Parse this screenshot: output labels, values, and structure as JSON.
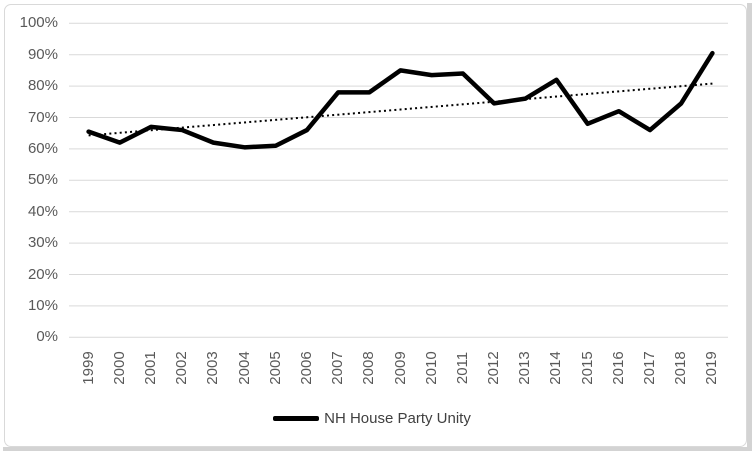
{
  "chart_data": {
    "type": "line",
    "legend": "NH House Party Unity",
    "categories": [
      "1999",
      "2000",
      "2001",
      "2002",
      "2003",
      "2004",
      "2005",
      "2006",
      "2007",
      "2008",
      "2009",
      "2010",
      "2011",
      "2012",
      "2013",
      "2014",
      "2015",
      "2016",
      "2017",
      "2018",
      "2019"
    ],
    "series": [
      {
        "name": "NH House Party Unity",
        "values": [
          65.5,
          62,
          67,
          66,
          62,
          60.5,
          61,
          66,
          78,
          78,
          85,
          83.5,
          84,
          74.5,
          76,
          82,
          68,
          72,
          66,
          74.5,
          90.5
        ]
      }
    ],
    "trendline": {
      "style": "dotted",
      "start_value": 64.3,
      "end_value": 80.8
    },
    "y_axis": {
      "min": 0,
      "max": 100,
      "step": 10,
      "ticks": [
        {
          "label": "100%",
          "value": 100
        },
        {
          "label": "90%",
          "value": 90
        },
        {
          "label": "80%",
          "value": 80
        },
        {
          "label": "70%",
          "value": 70
        },
        {
          "label": "60%",
          "value": 60
        },
        {
          "label": "50%",
          "value": 50
        },
        {
          "label": "40%",
          "value": 40
        },
        {
          "label": "30%",
          "value": 30
        },
        {
          "label": "20%",
          "value": 20
        },
        {
          "label": "10%",
          "value": 10
        },
        {
          "label": "0%",
          "value": 0
        }
      ]
    },
    "layout": {
      "grid": "horizontal",
      "legend_position": "bottom",
      "x_label_rotation": -90
    },
    "colors": {
      "series": "#000000",
      "trendline": "#000000",
      "gridline": "#d9d9d9",
      "axis_label": "#595959",
      "legend_text": "#404040",
      "background": "#ffffff",
      "frame_border": "#d9d9d9",
      "edge_shadow": "#d3d3d3"
    }
  }
}
